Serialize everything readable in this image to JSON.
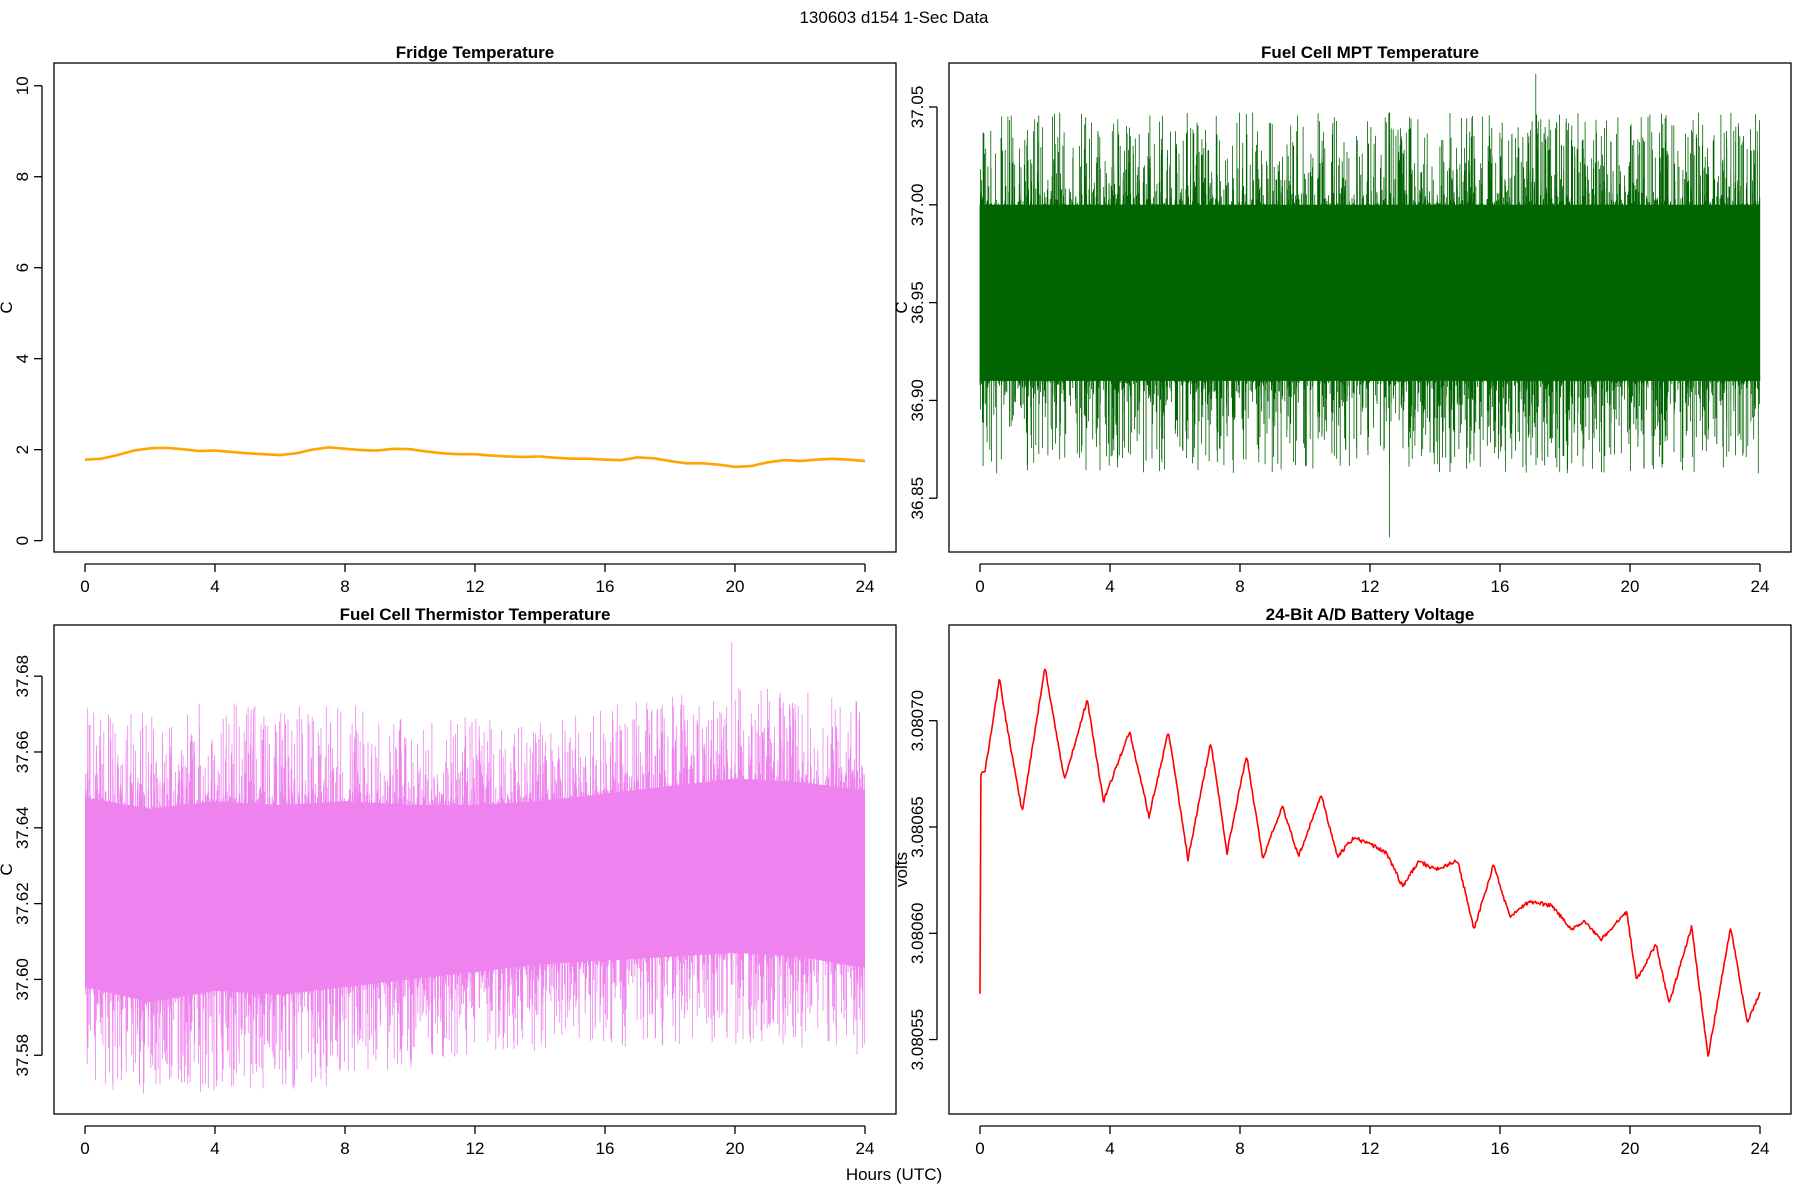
{
  "figure_title": "130603   d154   1-Sec Data",
  "common_xlabel": "Hours (UTC)",
  "chart_data": [
    {
      "id": "fridge",
      "type": "line",
      "title": "Fridge Temperature",
      "xlabel": "",
      "ylabel": "C",
      "xlim": [
        0,
        24
      ],
      "ylim": [
        -0.25,
        10.5
      ],
      "xticks": [
        "0",
        "4",
        "8",
        "12",
        "16",
        "20",
        "24"
      ],
      "yticks": [
        "0",
        "2",
        "4",
        "6",
        "8",
        "10"
      ],
      "ytick_values": [
        0,
        2,
        4,
        6,
        8,
        10
      ],
      "color": "#FFA500",
      "x": [
        0,
        0.5,
        1,
        1.5,
        2,
        2.5,
        3,
        3.5,
        4,
        4.5,
        5,
        5.5,
        6,
        6.5,
        7,
        7.5,
        8,
        8.5,
        9,
        9.5,
        10,
        10.5,
        11,
        11.5,
        12,
        12.5,
        13,
        13.5,
        14,
        14.5,
        15,
        15.5,
        16,
        16.5,
        17,
        17.5,
        18,
        18.5,
        19,
        19.5,
        20,
        20.5,
        21,
        21.5,
        22,
        22.5,
        23,
        23.5,
        24
      ],
      "values": [
        1.78,
        1.8,
        1.88,
        1.98,
        2.03,
        2.04,
        2.01,
        1.97,
        1.98,
        1.95,
        1.92,
        1.9,
        1.88,
        1.92,
        2.0,
        2.05,
        2.02,
        1.99,
        1.98,
        2.02,
        2.01,
        1.96,
        1.92,
        1.9,
        1.9,
        1.87,
        1.85,
        1.84,
        1.85,
        1.82,
        1.8,
        1.8,
        1.78,
        1.77,
        1.83,
        1.81,
        1.75,
        1.7,
        1.7,
        1.67,
        1.62,
        1.64,
        1.72,
        1.77,
        1.75,
        1.78,
        1.8,
        1.78,
        1.75
      ]
    },
    {
      "id": "mpt",
      "type": "line",
      "title": "Fuel Cell MPT Temperature",
      "xlabel": "",
      "ylabel": "C",
      "xlim": [
        0,
        24
      ],
      "ylim": [
        36.8225,
        37.0725
      ],
      "xticks": [
        "0",
        "4",
        "8",
        "12",
        "16",
        "20",
        "24"
      ],
      "yticks": [
        "36.85",
        "36.90",
        "36.95",
        "37.00",
        "37.05"
      ],
      "ytick_values": [
        36.85,
        36.9,
        36.95,
        37.0,
        37.05
      ],
      "color": "#006400",
      "x": [
        0,
        2,
        4,
        6,
        8,
        10,
        12,
        14,
        16,
        18,
        20,
        22,
        24
      ],
      "center": [
        36.955,
        36.955,
        36.955,
        36.955,
        36.955,
        36.955,
        36.955,
        36.955,
        36.955,
        36.955,
        36.955,
        36.955,
        36.955
      ],
      "band_low": [
        36.91,
        36.91,
        36.91,
        36.91,
        36.91,
        36.91,
        36.91,
        36.91,
        36.91,
        36.91,
        36.91,
        36.91,
        36.91
      ],
      "band_high": [
        37.0,
        37.0,
        37.0,
        37.0,
        37.0,
        37.0,
        37.0,
        37.0,
        37.0,
        37.0,
        37.0,
        37.0,
        37.0
      ],
      "min": 36.83,
      "max": 37.067
    },
    {
      "id": "thermistor",
      "type": "line",
      "title": "Fuel Cell Thermistor Temperature",
      "xlabel": "",
      "ylabel": "C",
      "xlim": [
        0,
        24
      ],
      "ylim": [
        37.5645,
        37.6935
      ],
      "xticks": [
        "0",
        "4",
        "8",
        "12",
        "16",
        "20",
        "24"
      ],
      "yticks": [
        "37.58",
        "37.60",
        "37.62",
        "37.64",
        "37.66",
        "37.68"
      ],
      "ytick_values": [
        37.58,
        37.6,
        37.62,
        37.64,
        37.66,
        37.68
      ],
      "color": "#EE82EE",
      "x": [
        0,
        2,
        4,
        6,
        8,
        10,
        12,
        14,
        16,
        18,
        20,
        22,
        24
      ],
      "center": [
        37.621,
        37.618,
        37.62,
        37.619,
        37.62,
        37.621,
        37.622,
        37.624,
        37.625,
        37.627,
        37.628,
        37.627,
        37.625
      ],
      "band_low": [
        37.598,
        37.594,
        37.597,
        37.596,
        37.598,
        37.6,
        37.602,
        37.604,
        37.605,
        37.606,
        37.607,
        37.606,
        37.603
      ],
      "band_high": [
        37.648,
        37.645,
        37.647,
        37.646,
        37.647,
        37.646,
        37.646,
        37.647,
        37.649,
        37.651,
        37.653,
        37.652,
        37.65
      ],
      "min": 37.57,
      "max": 37.689
    },
    {
      "id": "battery",
      "type": "line",
      "title": "24-Bit A/D Battery Voltage",
      "xlabel": "",
      "ylabel": "volts",
      "xlim": [
        0,
        24
      ],
      "ylim": [
        3.080515,
        3.080745
      ],
      "xticks": [
        "0",
        "4",
        "8",
        "12",
        "16",
        "20",
        "24"
      ],
      "yticks": [
        "3.08055",
        "3.08060",
        "3.08065",
        "3.08070"
      ],
      "ytick_values": [
        3.08055,
        3.0806,
        3.08065,
        3.0807
      ],
      "color": "#FF0000",
      "x": [
        0,
        0.02,
        0.05,
        0.15,
        0.3,
        0.6,
        0.8,
        1.3,
        2.0,
        2.6,
        3.3,
        3.8,
        4.6,
        5.2,
        5.8,
        6.4,
        7.1,
        7.6,
        8.2,
        8.7,
        9.3,
        9.8,
        10.5,
        11.0,
        11.5,
        12.0,
        12.5,
        13.0,
        13.5,
        14.0,
        14.7,
        15.2,
        15.8,
        16.3,
        16.9,
        17.6,
        18.2,
        18.6,
        19.1,
        19.9,
        20.2,
        20.8,
        21.2,
        21.9,
        22.4,
        23.1,
        23.6,
        24.0
      ],
      "values": [
        3.080572,
        3.080675,
        3.080675,
        3.080676,
        3.08069,
        3.08072,
        3.0807,
        3.080657,
        3.080725,
        3.080672,
        3.08071,
        3.080662,
        3.080695,
        3.080655,
        3.080695,
        3.080635,
        3.08069,
        3.080638,
        3.080684,
        3.080635,
        3.08066,
        3.080636,
        3.080665,
        3.080636,
        3.080645,
        3.080642,
        3.080638,
        3.080622,
        3.080634,
        3.08063,
        3.080634,
        3.080602,
        3.080632,
        3.080608,
        3.080615,
        3.080613,
        3.080602,
        3.080606,
        3.080597,
        3.08061,
        3.080578,
        3.080595,
        3.080567,
        3.080603,
        3.080542,
        3.080603,
        3.080558,
        3.080572
      ]
    }
  ]
}
